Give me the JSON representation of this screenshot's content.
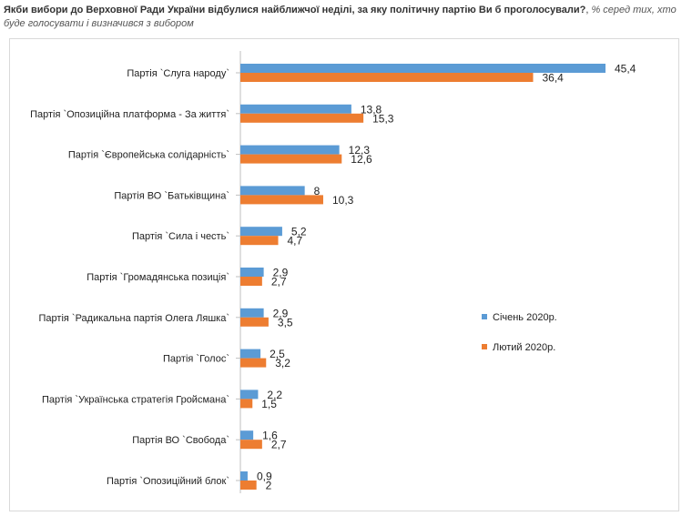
{
  "title": {
    "main": "Якби вибори до Верховної Ради України відбулися найближчої неділі, за яку політичну партію Ви б проголосували?",
    "sub": "% серед тих, хто буде голосувати і визначився з вибором"
  },
  "chart_data": {
    "type": "bar",
    "orientation": "horizontal",
    "categories": [
      "Партія `Слуга народу`",
      "Партія `Опозиційна платформа - За життя`",
      "Партія `Європейська солідарність`",
      "Партія ВО `Батьківщина`",
      "Партія `Сила і честь`",
      "Партія `Громадянська позиція`",
      "Партія `Радикальна партія Олега Ляшка`",
      "Партія `Голос`",
      "Партія `Українська стратегія Гройсмана`",
      "Партія ВО `Свобода`",
      "Партія `Опозиційний блок`"
    ],
    "series": [
      {
        "name": "Січень 2020р.",
        "color": "#5B9BD5",
        "values": [
          45.4,
          13.8,
          12.3,
          8,
          5.2,
          2.9,
          2.9,
          2.5,
          2.2,
          1.6,
          0.9
        ],
        "labels": [
          "45,4",
          "13,8",
          "12,3",
          "8",
          "5,2",
          "2,9",
          "2,9",
          "2,5",
          "2,2",
          "1,6",
          "0,9"
        ]
      },
      {
        "name": "Лютий 2020р.",
        "color": "#ED7D31",
        "values": [
          36.4,
          15.3,
          12.6,
          10.3,
          4.7,
          2.7,
          3.5,
          3.2,
          1.5,
          2.7,
          2
        ],
        "labels": [
          "36,4",
          "15,3",
          "12,6",
          "10,3",
          "4,7",
          "2,7",
          "3,5",
          "3,2",
          "1,5",
          "2,7",
          "2"
        ]
      }
    ],
    "xlim": [
      0,
      45.4
    ],
    "grid": false,
    "legend_position": "right"
  }
}
